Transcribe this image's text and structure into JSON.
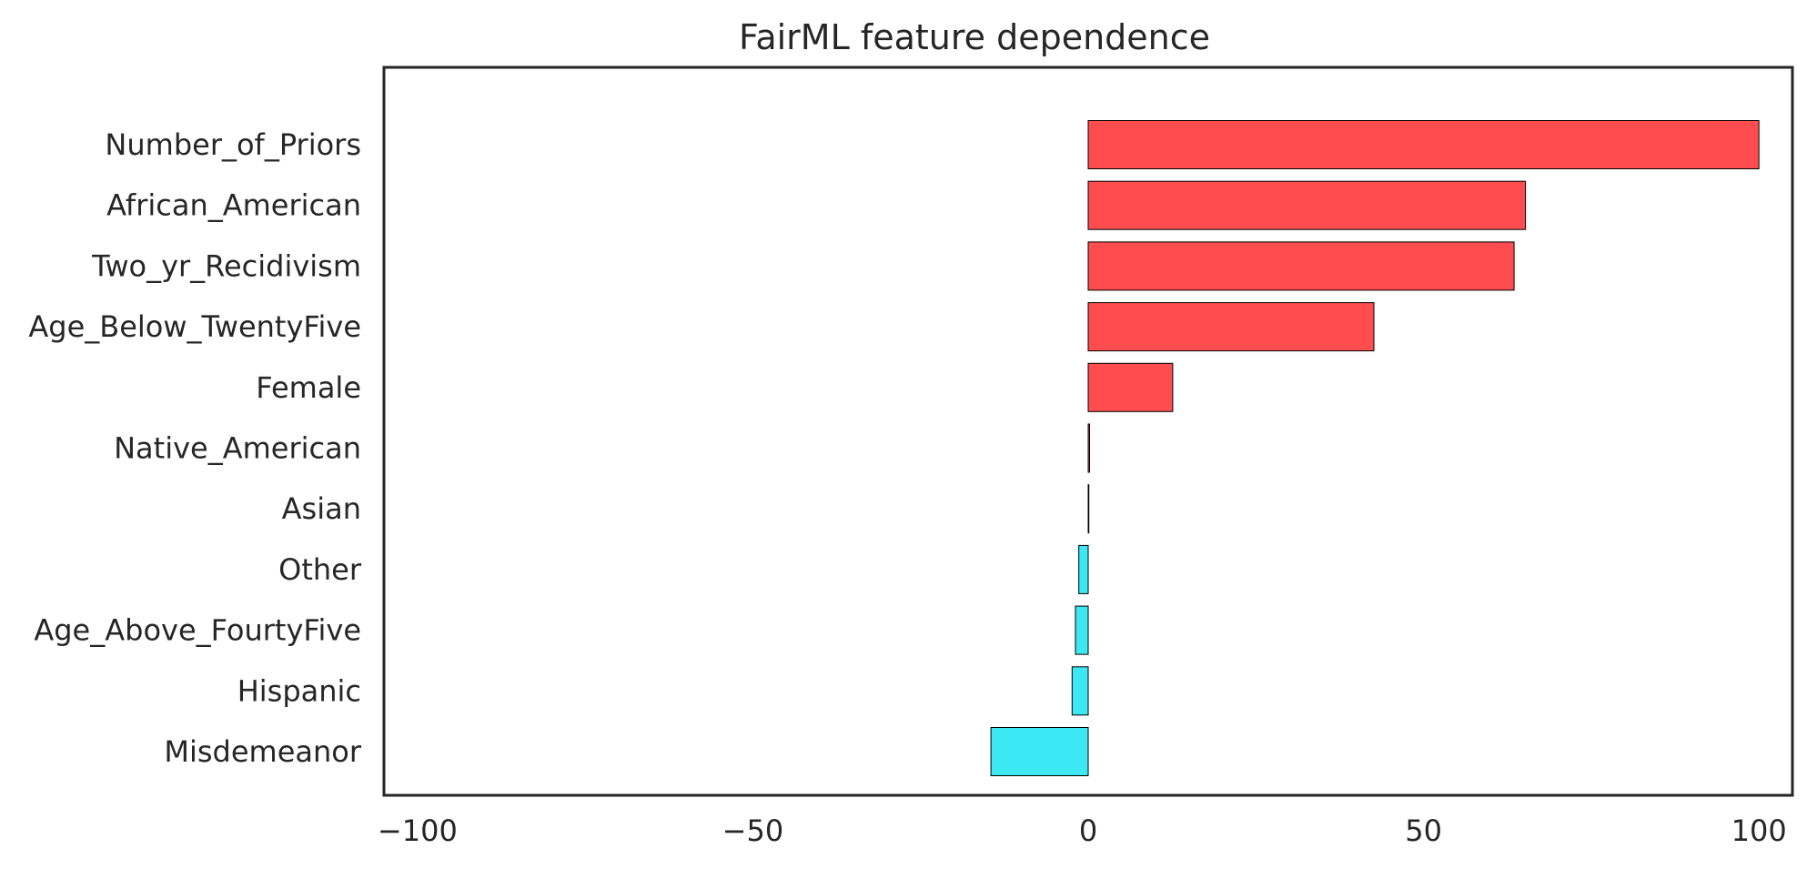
{
  "chart_data": {
    "type": "bar",
    "orientation": "horizontal",
    "title": "FairML feature dependence",
    "xlabel": "",
    "ylabel": "",
    "xlim": [
      -105,
      105
    ],
    "xticks": [
      -100,
      -50,
      0,
      50,
      100
    ],
    "xtick_labels": [
      "−100",
      "−50",
      "0",
      "50",
      "100"
    ],
    "grid": false,
    "categories": [
      "Number_of_Priors",
      "African_American",
      "Two_yr_Recidivism",
      "Age_Below_TwentyFive",
      "Female",
      "Native_American",
      "Asian",
      "Other",
      "Age_Above_FourtyFive",
      "Hispanic",
      "Misdemeanor"
    ],
    "values": [
      100,
      65.2,
      63.5,
      42.6,
      12.6,
      0.2,
      0.1,
      -1.4,
      -1.9,
      -2.4,
      -14.5
    ],
    "colors": {
      "positive": "#ff4d4f",
      "negative": "#3de8f5",
      "edge": "#000000",
      "frame": "#262626",
      "text": "#262626"
    }
  }
}
